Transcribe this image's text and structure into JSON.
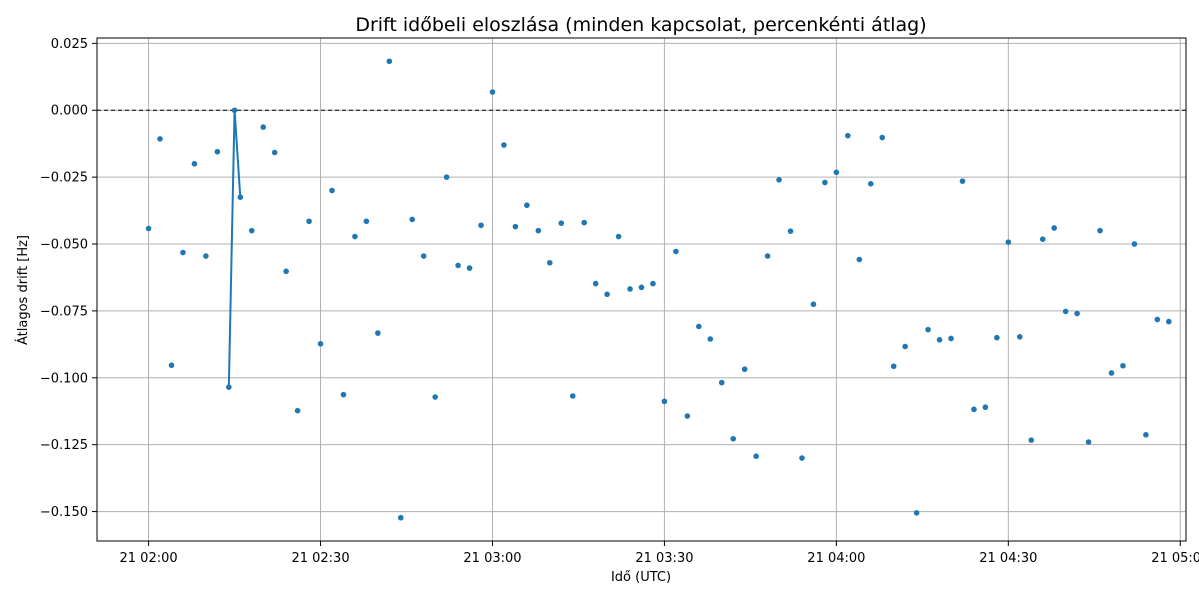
{
  "chart_data": {
    "type": "scatter",
    "title": "Drift időbeli eloszlása (minden kapcsolat, percenkénti átlag)",
    "xlabel": "Idő (UTC)",
    "ylabel": "Átlagos drift [Hz]",
    "xlim": [
      "21 01:51",
      "21 05:01"
    ],
    "ylim": [
      -0.161,
      0.027
    ],
    "grid": true,
    "reference_line": {
      "y": 0.0,
      "style": "dashed",
      "color": "#000000"
    },
    "colors": {
      "series": "#1f77b4",
      "grid": "#b0b0b0"
    },
    "x_ticks": [
      {
        "value": "21 02:00",
        "label": "21 02:00"
      },
      {
        "value": "21 02:30",
        "label": "21 02:30"
      },
      {
        "value": "21 03:00",
        "label": "21 03:00"
      },
      {
        "value": "21 03:30",
        "label": "21 03:30"
      },
      {
        "value": "21 04:00",
        "label": "21 04:00"
      },
      {
        "value": "21 04:30",
        "label": "21 04:30"
      },
      {
        "value": "21 05:00",
        "label": "21 05:00"
      }
    ],
    "y_ticks": [
      {
        "value": 0.025,
        "label": "0.025"
      },
      {
        "value": 0.0,
        "label": "0.000"
      },
      {
        "value": -0.025,
        "label": "−0.025"
      },
      {
        "value": -0.05,
        "label": "−0.050"
      },
      {
        "value": -0.075,
        "label": "−0.075"
      },
      {
        "value": -0.1,
        "label": "−0.100"
      },
      {
        "value": -0.125,
        "label": "−0.125"
      },
      {
        "value": -0.15,
        "label": "−0.150"
      }
    ],
    "line_segment": [
      [
        "21 02:14",
        -0.1035
      ],
      [
        "21 02:15",
        0.0
      ],
      [
        "21 02:16",
        -0.0325
      ]
    ],
    "points": [
      [
        "21 02:00",
        -0.0442
      ],
      [
        "21 02:02",
        -0.0107
      ],
      [
        "21 02:04",
        -0.0953
      ],
      [
        "21 02:06",
        -0.0532
      ],
      [
        "21 02:08",
        -0.02
      ],
      [
        "21 02:10",
        -0.0545
      ],
      [
        "21 02:12",
        -0.0155
      ],
      [
        "21 02:14",
        -0.1035
      ],
      [
        "21 02:15",
        0.0
      ],
      [
        "21 02:16",
        -0.0325
      ],
      [
        "21 02:18",
        -0.045
      ],
      [
        "21 02:20",
        -0.0063
      ],
      [
        "21 02:22",
        -0.0158
      ],
      [
        "21 02:24",
        -0.0602
      ],
      [
        "21 02:26",
        -0.1123
      ],
      [
        "21 02:28",
        -0.0415
      ],
      [
        "21 02:30",
        -0.0873
      ],
      [
        "21 02:32",
        -0.03
      ],
      [
        "21 02:34",
        -0.1063
      ],
      [
        "21 02:36",
        -0.0472
      ],
      [
        "21 02:38",
        -0.0415
      ],
      [
        "21 02:40",
        -0.0833
      ],
      [
        "21 02:42",
        0.0183
      ],
      [
        "21 02:44",
        -0.1523
      ],
      [
        "21 02:46",
        -0.0408
      ],
      [
        "21 02:48",
        -0.0545
      ],
      [
        "21 02:50",
        -0.1072
      ],
      [
        "21 02:52",
        -0.025
      ],
      [
        "21 02:54",
        -0.058
      ],
      [
        "21 02:56",
        -0.059
      ],
      [
        "21 02:58",
        -0.043
      ],
      [
        "21 03:00",
        0.0068
      ],
      [
        "21 03:02",
        -0.013
      ],
      [
        "21 03:04",
        -0.0435
      ],
      [
        "21 03:06",
        -0.0355
      ],
      [
        "21 03:08",
        -0.045
      ],
      [
        "21 03:10",
        -0.057
      ],
      [
        "21 03:12",
        -0.0422
      ],
      [
        "21 03:14",
        -0.1068
      ],
      [
        "21 03:16",
        -0.042
      ],
      [
        "21 03:18",
        -0.0648
      ],
      [
        "21 03:20",
        -0.0688
      ],
      [
        "21 03:22",
        -0.0472
      ],
      [
        "21 03:24",
        -0.0668
      ],
      [
        "21 03:26",
        -0.0662
      ],
      [
        "21 03:28",
        -0.0648
      ],
      [
        "21 03:30",
        -0.1088
      ],
      [
        "21 03:32",
        -0.0528
      ],
      [
        "21 03:34",
        -0.1143
      ],
      [
        "21 03:36",
        -0.0808
      ],
      [
        "21 03:38",
        -0.0855
      ],
      [
        "21 03:40",
        -0.1018
      ],
      [
        "21 03:42",
        -0.1228
      ],
      [
        "21 03:44",
        -0.0968
      ],
      [
        "21 03:46",
        -0.1293
      ],
      [
        "21 03:48",
        -0.0545
      ],
      [
        "21 03:50",
        -0.026
      ],
      [
        "21 03:52",
        -0.0452
      ],
      [
        "21 03:54",
        -0.13
      ],
      [
        "21 03:56",
        -0.0725
      ],
      [
        "21 03:58",
        -0.027
      ],
      [
        "21 04:00",
        -0.0232
      ],
      [
        "21 04:02",
        -0.0095
      ],
      [
        "21 04:04",
        -0.0558
      ],
      [
        "21 04:06",
        -0.0275
      ],
      [
        "21 04:08",
        -0.0102
      ],
      [
        "21 04:10",
        -0.0957
      ],
      [
        "21 04:12",
        -0.0883
      ],
      [
        "21 04:14",
        -0.1505
      ],
      [
        "21 04:16",
        -0.082
      ],
      [
        "21 04:18",
        -0.0858
      ],
      [
        "21 04:20",
        -0.0853
      ],
      [
        "21 04:22",
        -0.0265
      ],
      [
        "21 04:24",
        -0.1118
      ],
      [
        "21 04:26",
        -0.111
      ],
      [
        "21 04:28",
        -0.085
      ],
      [
        "21 04:30",
        -0.0493
      ],
      [
        "21 04:32",
        -0.0847
      ],
      [
        "21 04:34",
        -0.1233
      ],
      [
        "21 04:36",
        -0.0482
      ],
      [
        "21 04:38",
        -0.044
      ],
      [
        "21 04:40",
        -0.0752
      ],
      [
        "21 04:42",
        -0.076
      ],
      [
        "21 04:44",
        -0.124
      ],
      [
        "21 04:46",
        -0.045
      ],
      [
        "21 04:48",
        -0.0982
      ],
      [
        "21 04:50",
        -0.0955
      ],
      [
        "21 04:52",
        -0.05
      ],
      [
        "21 04:54",
        -0.1213
      ],
      [
        "21 04:56",
        -0.0782
      ],
      [
        "21 04:58",
        -0.079
      ]
    ]
  }
}
